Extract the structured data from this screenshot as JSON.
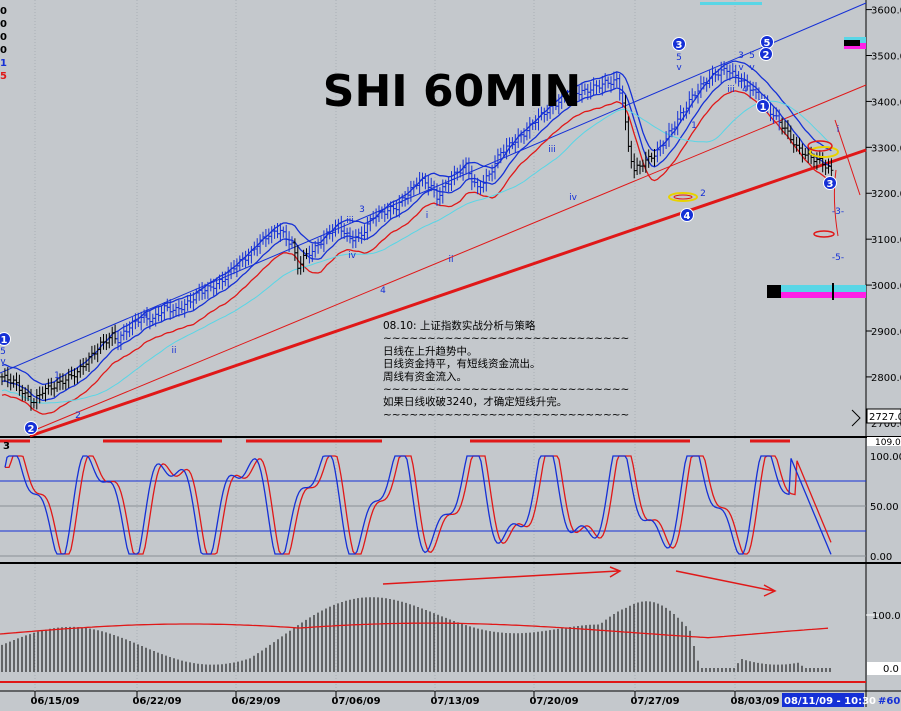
{
  "chart_data": [
    {
      "type": "candlestick",
      "title": "SHI 60MIN",
      "price_axis": {
        "ticks": [
          "3600.00",
          "3500.00",
          "3400.00",
          "3300.00",
          "3200.00",
          "3100.00",
          "3000.00",
          "2900.00",
          "2800.00",
          "2700.00"
        ],
        "tick_values": [
          3600,
          3500,
          3400,
          3300,
          3200,
          3100,
          3000,
          2900,
          2800,
          2700
        ],
        "ylim": [
          2680,
          3610
        ],
        "current_label": "2727.0"
      },
      "price_path_points": [
        [
          0,
          2800
        ],
        [
          4,
          2790
        ],
        [
          8,
          2760
        ],
        [
          11,
          2745
        ],
        [
          14,
          2770
        ],
        [
          18,
          2780
        ],
        [
          22,
          2795
        ],
        [
          26,
          2810
        ],
        [
          30,
          2840
        ],
        [
          34,
          2870
        ],
        [
          38,
          2890
        ],
        [
          40,
          2880
        ],
        [
          44,
          2910
        ],
        [
          48,
          2930
        ],
        [
          52,
          2925
        ],
        [
          56,
          2950
        ],
        [
          60,
          2945
        ],
        [
          64,
          2960
        ],
        [
          68,
          2985
        ],
        [
          72,
          2995
        ],
        [
          76,
          3010
        ],
        [
          80,
          3040
        ],
        [
          84,
          3060
        ],
        [
          86,
          3070
        ],
        [
          88,
          3090
        ],
        [
          92,
          3110
        ],
        [
          96,
          3120
        ],
        [
          98,
          3100
        ],
        [
          100,
          3090
        ],
        [
          102,
          3040
        ],
        [
          104,
          3060
        ],
        [
          108,
          3080
        ],
        [
          112,
          3110
        ],
        [
          116,
          3130
        ],
        [
          118,
          3115
        ],
        [
          120,
          3100
        ],
        [
          124,
          3110
        ],
        [
          128,
          3150
        ],
        [
          132,
          3160
        ],
        [
          136,
          3170
        ],
        [
          140,
          3200
        ],
        [
          144,
          3230
        ],
        [
          148,
          3215
        ],
        [
          150,
          3190
        ],
        [
          152,
          3210
        ],
        [
          156,
          3240
        ],
        [
          160,
          3260
        ],
        [
          162,
          3230
        ],
        [
          164,
          3210
        ],
        [
          168,
          3240
        ],
        [
          172,
          3290
        ],
        [
          176,
          3310
        ],
        [
          180,
          3330
        ],
        [
          184,
          3360
        ],
        [
          188,
          3380
        ],
        [
          192,
          3400
        ],
        [
          196,
          3420
        ],
        [
          200,
          3420
        ],
        [
          204,
          3430
        ],
        [
          208,
          3440
        ],
        [
          212,
          3445
        ],
        [
          214,
          3400
        ],
        [
          216,
          3300
        ],
        [
          218,
          3250
        ],
        [
          222,
          3270
        ],
        [
          226,
          3290
        ],
        [
          230,
          3330
        ],
        [
          234,
          3370
        ],
        [
          238,
          3410
        ],
        [
          242,
          3440
        ],
        [
          246,
          3460
        ],
        [
          250,
          3470
        ],
        [
          254,
          3450
        ],
        [
          258,
          3430
        ],
        [
          262,
          3400
        ],
        [
          266,
          3370
        ],
        [
          270,
          3340
        ],
        [
          274,
          3300
        ],
        [
          278,
          3280
        ],
        [
          282,
          3270
        ],
        [
          286,
          3250
        ]
      ],
      "annotations": {
        "waves_blue_circles": [
          "1",
          "2",
          "3",
          "4",
          "5",
          "1",
          "2",
          "3"
        ],
        "waves_lower": [
          "1",
          "2",
          "3",
          "4",
          "5",
          "i",
          "ii",
          "iii",
          "iv",
          "v"
        ],
        "red_targets": [
          "-3-",
          "-5-"
        ]
      },
      "note_lines": [
        "08.10: 上证指数实战分析与策略",
        "~~~~~~~~~~~~~~~~~~~~~~~~~~~~",
        "日线在上升趋势中。",
        "日线资金持平，有短线资金流出。",
        "周线有资金流入。",
        "~~~~~~~~~~~~~~~~~~~~~~~~~~~~",
        "如果日线收破3240，才确定短线升完。",
        "~~~~~~~~~~~~~~~~~~~~~~~~~~~~"
      ]
    },
    {
      "type": "line",
      "name": "stochastic",
      "ticks": [
        "100.00",
        "50.00",
        "0.00"
      ],
      "top_label": "109.00",
      "left_label": "3",
      "ylim": [
        0,
        109
      ]
    },
    {
      "type": "bar",
      "name": "volume-oscillator",
      "ticks": [
        "100.0",
        "0.0"
      ]
    }
  ],
  "x_axis": {
    "labels": [
      "06/15/09",
      "06/22/09",
      "06/29/09",
      "07/06/09",
      "07/13/09",
      "07/20/09",
      "07/27/09",
      "08/03/09"
    ],
    "current_label": "08/11/09 - 10:30",
    "right_corner": "#60"
  },
  "left_edge_labels": [
    "0",
    "0",
    "0",
    "0",
    "1",
    "5"
  ],
  "colors": {
    "background": "#c4c8cc",
    "blue": "#1530d6",
    "red": "#e01818",
    "cyan": "#59d6e6",
    "magenta": "#ff20e6",
    "black": "#000000",
    "yellow": "#e8d200"
  }
}
